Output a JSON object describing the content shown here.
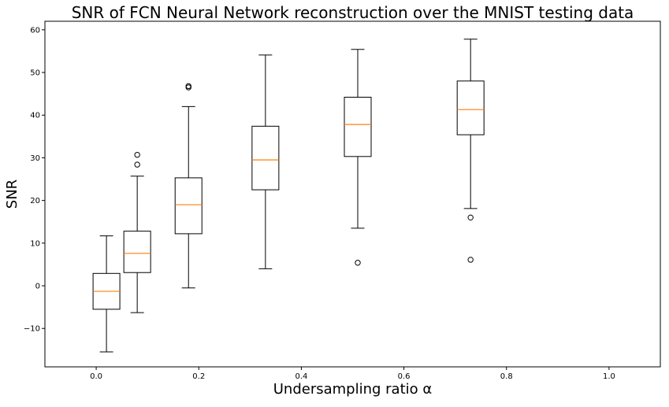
{
  "chart_data": {
    "type": "boxplot",
    "title": "SNR of FCN Neural Network reconstruction over the MNIST testing data",
    "xlabel": "Undersampling ratio α",
    "ylabel": "SNR",
    "xlim": [
      -0.1,
      1.1
    ],
    "ylim": [
      -19,
      62
    ],
    "x_ticks": [
      0.0,
      0.2,
      0.4,
      0.6,
      0.8,
      1.0
    ],
    "x_tick_labels": [
      "0.0",
      "0.2",
      "0.4",
      "0.6",
      "0.8",
      "1.0"
    ],
    "y_ticks": [
      -10,
      0,
      10,
      20,
      30,
      40,
      50,
      60
    ],
    "y_tick_labels": [
      "−10",
      "0",
      "10",
      "20",
      "30",
      "40",
      "50",
      "60"
    ],
    "grid": false,
    "colors": {
      "box": "#000000",
      "median": "#ff7f0e",
      "flier": "#000000"
    },
    "boxes": [
      {
        "x": 0.02,
        "whisker_low": -15.5,
        "q1": -5.5,
        "median": -1.3,
        "q3": 2.9,
        "whisker_high": 11.7,
        "fliers": []
      },
      {
        "x": 0.08,
        "whisker_low": -6.3,
        "q1": 3.1,
        "median": 7.6,
        "q3": 12.8,
        "whisker_high": 25.7,
        "fliers": [
          28.4,
          30.7
        ]
      },
      {
        "x": 0.18,
        "whisker_low": -0.5,
        "q1": 12.2,
        "median": 19.0,
        "q3": 25.3,
        "whisker_high": 42.0,
        "fliers": [
          46.5,
          46.8
        ]
      },
      {
        "x": 0.33,
        "whisker_low": 4.0,
        "q1": 22.5,
        "median": 29.5,
        "q3": 37.4,
        "whisker_high": 54.1,
        "fliers": []
      },
      {
        "x": 0.51,
        "whisker_low": 13.5,
        "q1": 30.3,
        "median": 37.8,
        "q3": 44.2,
        "whisker_high": 55.4,
        "fliers": [
          5.4
        ]
      },
      {
        "x": 0.73,
        "whisker_low": 18.1,
        "q1": 35.4,
        "median": 41.3,
        "q3": 48.0,
        "whisker_high": 57.8,
        "fliers": [
          6.1,
          16.0
        ]
      }
    ]
  }
}
